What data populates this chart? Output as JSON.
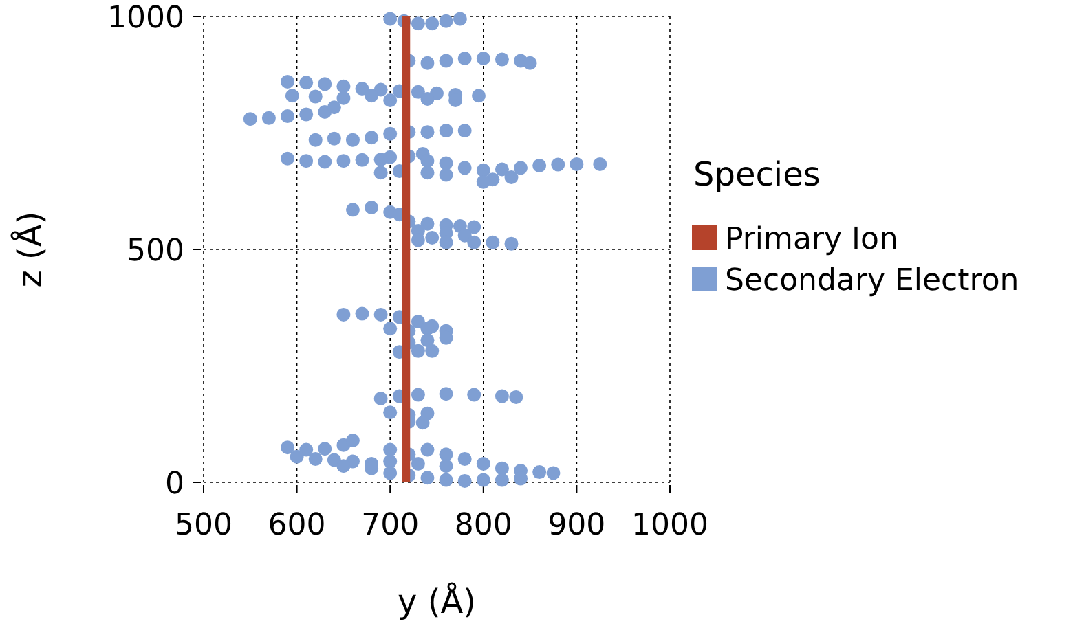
{
  "chart_data": {
    "type": "scatter",
    "xlabel": "y (Å)",
    "ylabel": "z (Å)",
    "legend_title": "Species",
    "xlim": [
      500,
      1000
    ],
    "ylim": [
      0,
      1000
    ],
    "xticks": [
      500,
      600,
      700,
      800,
      900,
      1000
    ],
    "yticks": [
      0,
      500,
      1000
    ],
    "grid": true,
    "legend": "right",
    "series": [
      {
        "name": "Primary Ion",
        "type": "line",
        "marker": "none",
        "color": "#b5432b",
        "x": [
          717,
          717
        ],
        "values": [
          0,
          1000
        ]
      },
      {
        "name": "Secondary Electron",
        "marker": "circle",
        "color": "#7f9fd3",
        "x": [
          700,
          715,
          730,
          745,
          760,
          775,
          720,
          740,
          760,
          780,
          800,
          820,
          840,
          850,
          590,
          610,
          630,
          650,
          670,
          690,
          710,
          730,
          750,
          770,
          795,
          595,
          620,
          650,
          680,
          700,
          740,
          770,
          550,
          570,
          590,
          610,
          630,
          640,
          620,
          640,
          660,
          680,
          700,
          720,
          740,
          760,
          780,
          590,
          610,
          630,
          650,
          670,
          690,
          700,
          720,
          735,
          740,
          760,
          780,
          800,
          820,
          840,
          860,
          880,
          900,
          925,
          830,
          810,
          800,
          690,
          710,
          740,
          760,
          660,
          680,
          700,
          710,
          720,
          740,
          760,
          775,
          790,
          730,
          760,
          780,
          730,
          760,
          790,
          810,
          830,
          745,
          650,
          670,
          690,
          710,
          730,
          745,
          760,
          700,
          720,
          740,
          720,
          740,
          760,
          710,
          730,
          745,
          690,
          710,
          730,
          760,
          790,
          820,
          835,
          700,
          720,
          740,
          720,
          735,
          590,
          610,
          630,
          650,
          660,
          600,
          620,
          640,
          660,
          680,
          700,
          720,
          740,
          760,
          780,
          800,
          820,
          840,
          860,
          875,
          700,
          720,
          740,
          760,
          780,
          800,
          820,
          840,
          760,
          700,
          680,
          650,
          730
        ],
        "values": [
          995,
          990,
          985,
          985,
          990,
          995,
          905,
          900,
          905,
          910,
          910,
          908,
          905,
          900,
          860,
          858,
          855,
          850,
          845,
          843,
          840,
          838,
          835,
          832,
          830,
          830,
          828,
          825,
          830,
          820,
          823,
          820,
          780,
          782,
          786,
          790,
          795,
          805,
          735,
          738,
          735,
          740,
          748,
          752,
          752,
          755,
          755,
          695,
          690,
          688,
          690,
          692,
          693,
          698,
          700,
          705,
          690,
          685,
          675,
          670,
          672,
          675,
          680,
          682,
          683,
          683,
          655,
          650,
          645,
          665,
          668,
          665,
          660,
          585,
          590,
          580,
          575,
          560,
          555,
          552,
          550,
          548,
          540,
          535,
          530,
          520,
          515,
          515,
          515,
          512,
          525,
          360,
          362,
          360,
          355,
          345,
          335,
          325,
          330,
          325,
          330,
          300,
          305,
          310,
          280,
          282,
          282,
          180,
          185,
          188,
          190,
          188,
          185,
          183,
          150,
          145,
          148,
          130,
          128,
          75,
          70,
          72,
          80,
          90,
          55,
          50,
          48,
          45,
          40,
          45,
          60,
          70,
          60,
          50,
          40,
          30,
          25,
          22,
          20,
          20,
          15,
          10,
          5,
          3,
          5,
          5,
          8,
          35,
          70,
          30,
          35,
          40
        ]
      }
    ]
  }
}
